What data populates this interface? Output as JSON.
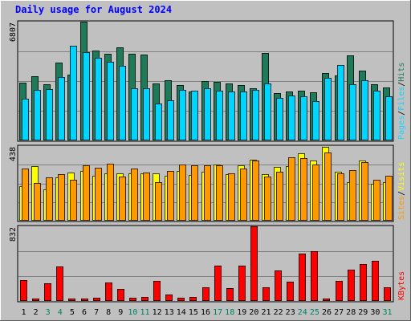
{
  "chart_data": {
    "type": "bar",
    "title": "Daily usage for August 2024",
    "categories": [
      "1",
      "2",
      "3",
      "4",
      "5",
      "6",
      "7",
      "8",
      "9",
      "10",
      "11",
      "12",
      "13",
      "14",
      "15",
      "16",
      "17",
      "18",
      "19",
      "20",
      "21",
      "22",
      "23",
      "24",
      "25",
      "26",
      "27",
      "28",
      "29",
      "30",
      "31"
    ],
    "weekend_days": [
      "3",
      "4",
      "10",
      "11",
      "17",
      "18",
      "24",
      "25",
      "31"
    ],
    "panels": [
      {
        "key": "pages_files_hits",
        "ymax_label": "6807",
        "ylim": [
          0,
          6807
        ],
        "legend": [
          "Pages",
          "/",
          "Files",
          "/",
          "Hits"
        ],
        "series": [
          {
            "name": "Hits",
            "color": "#1f7a5a",
            "values": [
              3316,
              3701,
              3236,
              4454,
              3768,
              6807,
              5136,
              4948,
              5322,
              4969,
              4942,
              3287,
              3427,
              3171,
              2827,
              3409,
              3365,
              3254,
              3160,
              3010,
              5034,
              2701,
              2812,
              2836,
              2753,
              3884,
              3729,
              4876,
              3987,
              3207,
              3042
            ]
          },
          {
            "name": "Files",
            "color": "#00d5ff",
            "values": [
              2378,
              2902,
              2964,
              3636,
              5444,
              5039,
              4730,
              4529,
              4296,
              2986,
              2967,
              2107,
              2306,
              2919,
              2848,
              3000,
              2832,
              2783,
              2811,
              2904,
              3250,
              2429,
              2597,
              2544,
              2270,
              3565,
              4338,
              3212,
              3441,
              2859,
              2532
            ]
          },
          {
            "name": "Pages",
            "color": "#1ad5ff",
            "values": [
              0,
              0,
              0,
              0,
              0,
              0,
              0,
              0,
              0,
              0,
              0,
              0,
              0,
              0,
              0,
              0,
              0,
              0,
              0,
              0,
              0,
              0,
              0,
              0,
              0,
              0,
              0,
              0,
              0,
              0,
              0
            ]
          }
        ]
      },
      {
        "key": "visits_sites",
        "ymax_label": "438",
        "ylim": [
          0,
          438
        ],
        "legend": [
          "Sites",
          "/",
          "Visits"
        ],
        "series": [
          {
            "name": "Visits",
            "color": "#ffff00",
            "values": [
              204,
              319,
              186,
              253,
              281,
              291,
              264,
              278,
              279,
              280,
              278,
              280,
              264,
              293,
              270,
              289,
              330,
              273,
              324,
              359,
              274,
              314,
              321,
              394,
              355,
              434,
              288,
              226,
              352,
              215,
              224
            ]
          },
          {
            "name": "Sites",
            "color": "#ff9900",
            "values": [
              304,
              220,
              256,
              271,
              240,
              324,
              310,
              334,
              261,
              306,
              282,
              226,
              294,
              328,
              325,
              323,
              326,
              278,
              306,
              355,
              259,
              286,
              374,
              368,
              330,
              402,
              276,
              296,
              346,
              242,
              264
            ]
          }
        ]
      },
      {
        "key": "kbytes",
        "ymax_label": "832",
        "ylim": [
          0,
          832
        ],
        "legend": [
          "KBytes"
        ],
        "series": [
          {
            "name": "KBytes",
            "color": "#ff0000",
            "values": [
              230,
              31,
              198,
              388,
              30,
              29,
              38,
              210,
              136,
              38,
              43,
              225,
              71,
              36,
              44,
              154,
              390,
              139,
              395,
              832,
              149,
              338,
              215,
              524,
              552,
              28,
              220,
              349,
              413,
              451,
              152
            ]
          }
        ]
      }
    ]
  }
}
